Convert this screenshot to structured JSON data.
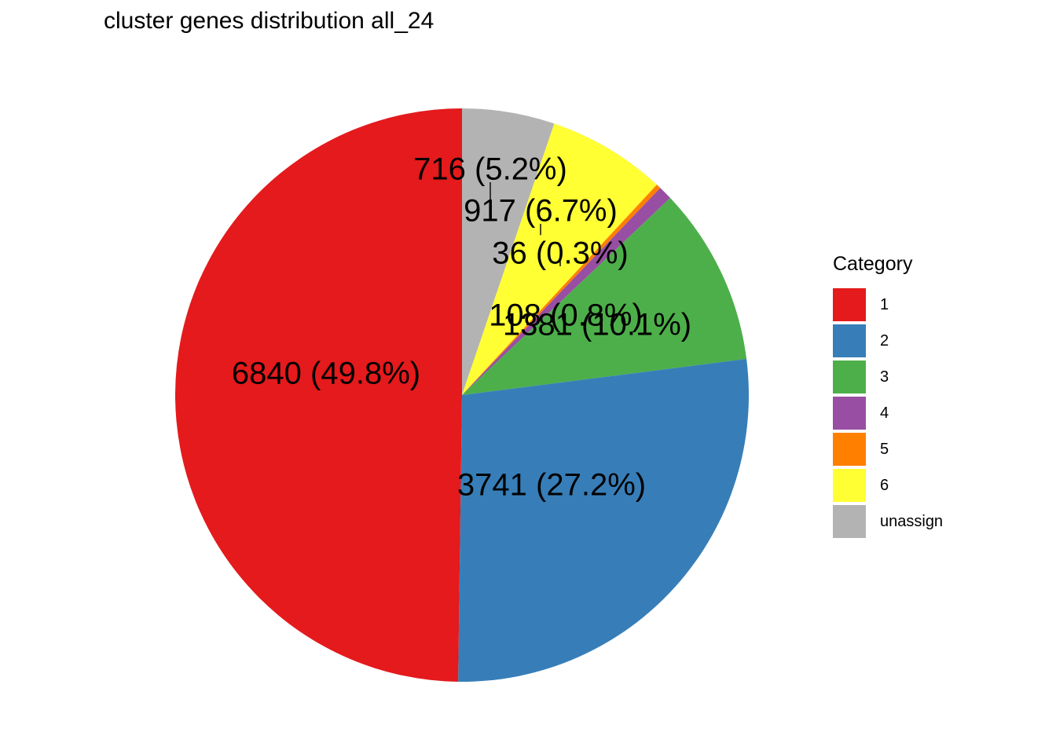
{
  "chart_data": {
    "type": "pie",
    "title": "cluster genes distribution all_24",
    "legend_title": "Category",
    "legend_position": "right",
    "slices": [
      {
        "category": "unassign",
        "value": 716,
        "label": "716 (5.2%)",
        "color": "#B3B3B3"
      },
      {
        "category": "6",
        "value": 917,
        "label": "917 (6.7%)",
        "color": "#FFFF33"
      },
      {
        "category": "5",
        "value": 36,
        "label": "36 (0.3%)",
        "color": "#FF7F00"
      },
      {
        "category": "4",
        "value": 108,
        "label": "108 (0.8%)",
        "color": "#984EA3"
      },
      {
        "category": "3",
        "value": 1381,
        "label": "1381 (10.1%)",
        "color": "#4DAF4A"
      },
      {
        "category": "2",
        "value": 3741,
        "label": "3741 (27.2%)",
        "color": "#377EB8"
      },
      {
        "category": "1",
        "value": 6840,
        "label": "6840 (49.8%)",
        "color": "#E41A1C"
      }
    ],
    "legend": [
      {
        "label": "1",
        "color": "#E41A1C"
      },
      {
        "label": "2",
        "color": "#377EB8"
      },
      {
        "label": "3",
        "color": "#4DAF4A"
      },
      {
        "label": "4",
        "color": "#984EA3"
      },
      {
        "label": "5",
        "color": "#FF7F00"
      },
      {
        "label": "6",
        "color": "#FFFF33"
      },
      {
        "label": "unassign",
        "color": "#B3B3B3"
      }
    ]
  }
}
